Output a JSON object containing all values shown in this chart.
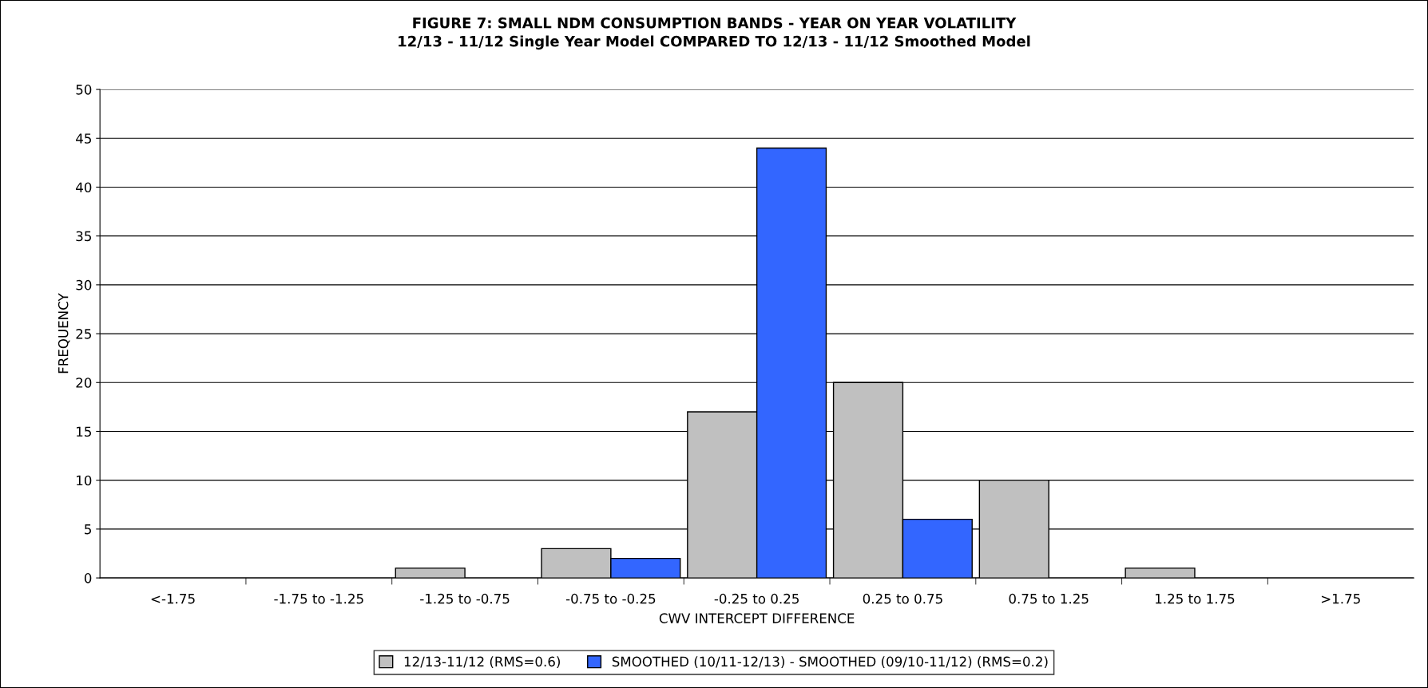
{
  "chart_data": {
    "type": "bar",
    "title": "FIGURE 7: SMALL NDM CONSUMPTION BANDS - YEAR ON YEAR VOLATILITY\n12/13 - 11/12 Single Year Model COMPARED TO 12/13 - 11/12 Smoothed Model",
    "xlabel": "CWV INTERCEPT DIFFERENCE",
    "ylabel": "FREQUENCY",
    "categories": [
      "<-1.75",
      "-1.75 to -1.25",
      "-1.25 to -0.75",
      "-0.75 to -0.25",
      "-0.25 to 0.25",
      "0.25 to 0.75",
      "0.75 to 1.25",
      "1.25 to 1.75",
      ">1.75"
    ],
    "series": [
      {
        "name": "12/13-11/12 (RMS=0.6)",
        "color": "#c0c0c0",
        "values": [
          0,
          0,
          1,
          3,
          17,
          20,
          10,
          1,
          0
        ]
      },
      {
        "name": "SMOOTHED (10/11-12/13) - SMOOTHED (09/10-11/12) (RMS=0.2)",
        "color": "#3366ff",
        "values": [
          0,
          0,
          0,
          2,
          44,
          6,
          0,
          0,
          0
        ]
      }
    ],
    "ylim": [
      0,
      50
    ],
    "yticks": [
      0,
      5,
      10,
      15,
      20,
      25,
      30,
      35,
      40,
      45,
      50
    ],
    "grid": "y",
    "legend": "bottom"
  }
}
